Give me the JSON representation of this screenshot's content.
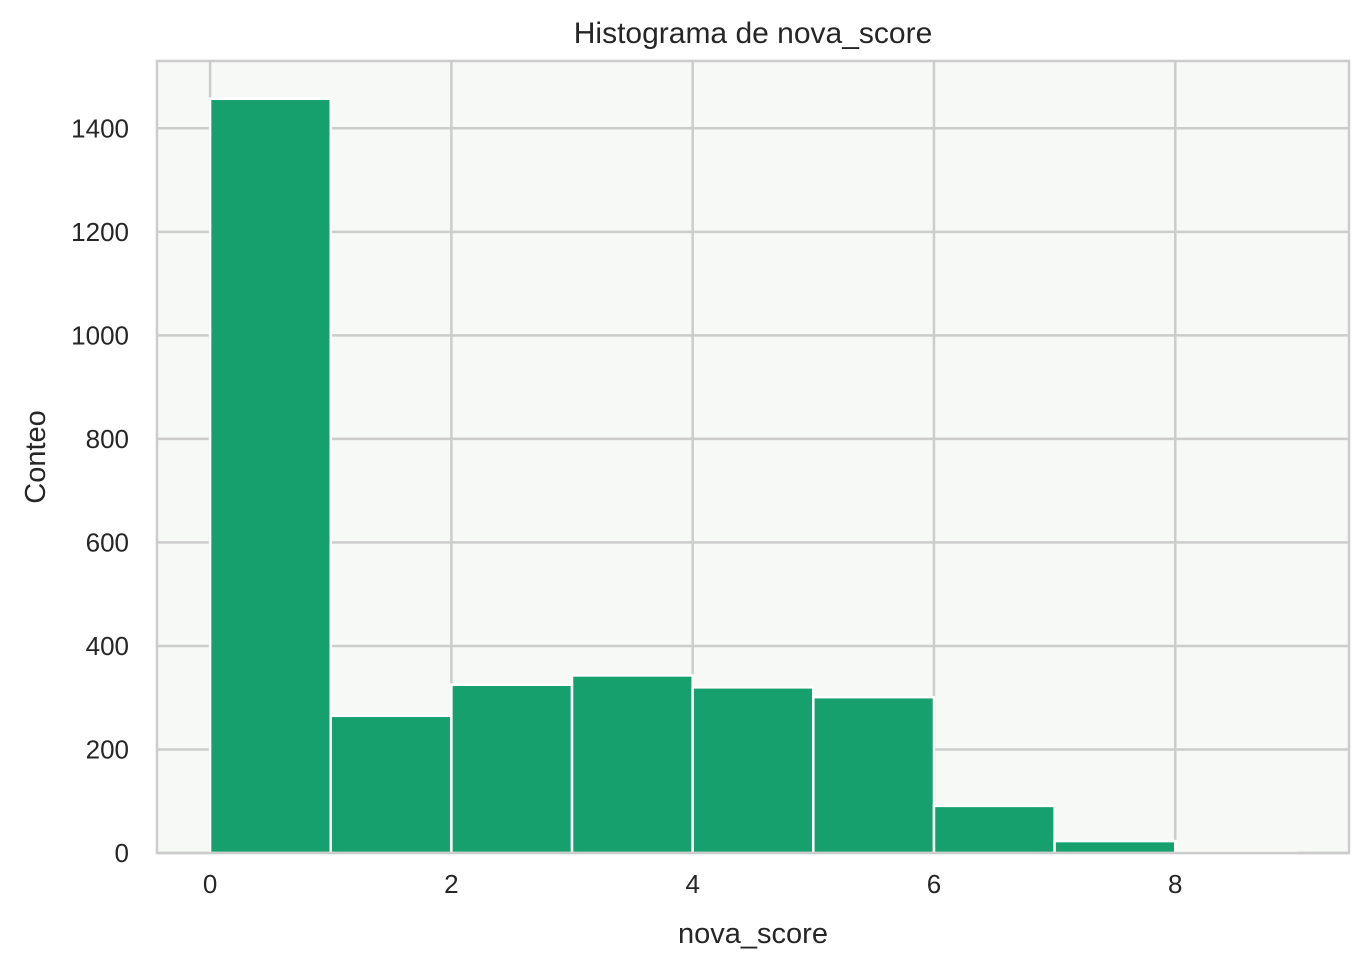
{
  "chart_data": {
    "type": "bar",
    "subtype": "histogram",
    "title": "Histograma de nova_score",
    "xlabel": "nova_score",
    "ylabel": "Conteo",
    "bins": [
      {
        "start": 0,
        "end": 1,
        "count": 1457
      },
      {
        "start": 1,
        "end": 2,
        "count": 265
      },
      {
        "start": 2,
        "end": 3,
        "count": 325
      },
      {
        "start": 3,
        "end": 4,
        "count": 343
      },
      {
        "start": 4,
        "end": 5,
        "count": 320
      },
      {
        "start": 5,
        "end": 6,
        "count": 301
      },
      {
        "start": 6,
        "end": 7,
        "count": 91
      },
      {
        "start": 7,
        "end": 8,
        "count": 23
      },
      {
        "start": 8,
        "end": 9,
        "count": 2
      }
    ],
    "xlim": [
      -0.44,
      9.44
    ],
    "ylim": [
      0,
      1530
    ],
    "xticks": [
      0,
      2,
      4,
      6,
      8
    ],
    "xtick_labels": [
      "0",
      "2",
      "4",
      "6",
      "8"
    ],
    "yticks": [
      0,
      200,
      400,
      600,
      800,
      1000,
      1200,
      1400
    ],
    "ytick_labels": [
      "0",
      "200",
      "400",
      "600",
      "800",
      "1000",
      "1200",
      "1400"
    ],
    "grid": true,
    "colors": {
      "bar": "#16a06e",
      "plot_background": "#f7f9f6",
      "grid": "#cccccc",
      "text": "#262626"
    }
  }
}
